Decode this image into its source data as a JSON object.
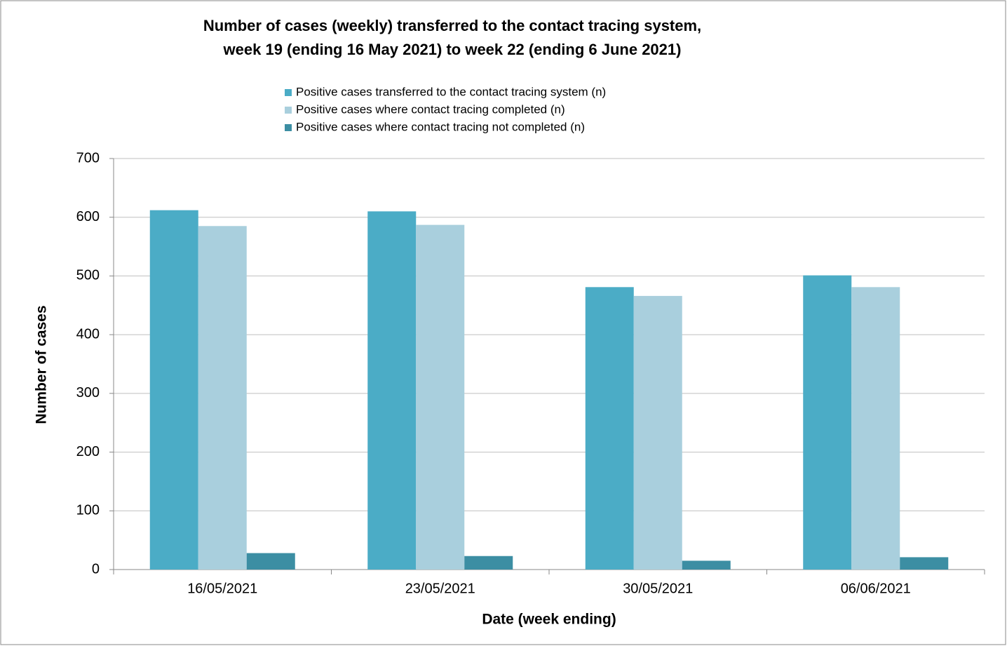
{
  "chart_data": {
    "type": "bar",
    "title": "Number of cases (weekly) transferred to the contact tracing system,",
    "subtitle": "week 19 (ending 16 May 2021) to week 22 (ending 6 June 2021)",
    "x_label": "Date (week ending)",
    "y_label": "Number of cases",
    "categories": [
      "16/05/2021",
      "23/05/2021",
      "30/05/2021",
      "06/06/2021"
    ],
    "series": [
      {
        "name": "Positive cases transferred to the contact tracing system (n)",
        "color": "#4bacc6",
        "values": [
          612,
          610,
          481,
          501
        ]
      },
      {
        "name": "Positive cases where contact tracing completed (n)",
        "color": "#a9cfdd",
        "values": [
          585,
          587,
          466,
          481
        ]
      },
      {
        "name": "Positive cases where contact tracing not completed (n)",
        "color": "#3c8ea3",
        "values": [
          28,
          23,
          15,
          21
        ]
      }
    ],
    "ylim": [
      0,
      700
    ],
    "yticks": [
      0,
      100,
      200,
      300,
      400,
      500,
      600,
      700
    ],
    "grid": true,
    "legend": "top"
  }
}
